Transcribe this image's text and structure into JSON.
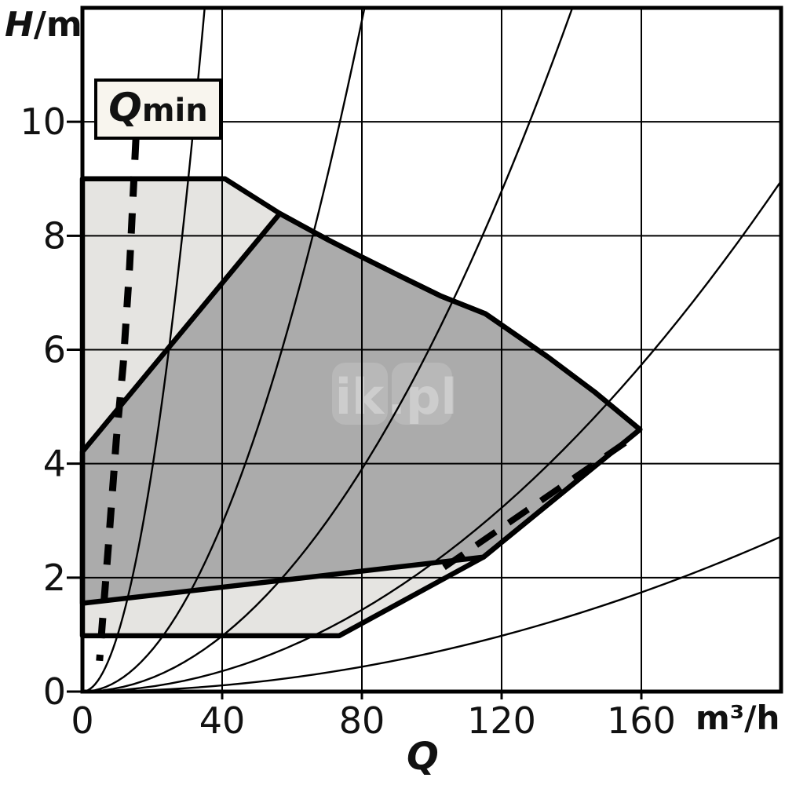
{
  "watermark": {
    "full": "ik.pl",
    "parts": [
      "ik",
      ".pl"
    ]
  },
  "labels": {
    "y_axis_symbol": "H",
    "y_axis_unit": "/m",
    "x_axis_symbol": "Q",
    "x_axis_unit": "m³/h",
    "qmin_symbol": "Q",
    "qmin_sub": "min"
  },
  "colors": {
    "envelope_light": "#e5e4e1",
    "operating_dark": "#ababab",
    "line": "#000000",
    "qmin_box_bg": "#f8f5ee"
  },
  "chart_data": {
    "type": "area",
    "title": "",
    "xlabel": "Q",
    "x_unit": "m³/h",
    "ylabel": "H/m",
    "grid": true,
    "x_axis": {
      "ticks": [
        0,
        40,
        80,
        120,
        160
      ],
      "range": [
        0,
        200
      ]
    },
    "y_axis": {
      "ticks": [
        0,
        2,
        4,
        6,
        8,
        10
      ],
      "range": [
        0,
        12
      ]
    },
    "regions": [
      {
        "name": "pump-family-envelope",
        "fill": "#e5e4e1",
        "points": [
          [
            0,
            9
          ],
          [
            40.8,
            9
          ],
          [
            56.5,
            8.39
          ],
          [
            70.6,
            7.92
          ],
          [
            80.2,
            7.62
          ],
          [
            93,
            7.23
          ],
          [
            102.7,
            6.94
          ],
          [
            115.4,
            6.63
          ],
          [
            133.3,
            5.87
          ],
          [
            146.8,
            5.25
          ],
          [
            159.6,
            4.6
          ],
          [
            114.8,
            2.36
          ],
          [
            73.5,
            0.98
          ],
          [
            0,
            0.98
          ]
        ]
      },
      {
        "name": "pump-operating-range",
        "fill": "#ababab",
        "points": [
          [
            0,
            4.21
          ],
          [
            56.5,
            8.39
          ],
          [
            70.6,
            7.92
          ],
          [
            80.2,
            7.62
          ],
          [
            93,
            7.23
          ],
          [
            102.7,
            6.94
          ],
          [
            115.4,
            6.63
          ],
          [
            133.3,
            5.87
          ],
          [
            146.8,
            5.25
          ],
          [
            159.6,
            4.6
          ],
          [
            114.8,
            2.36
          ],
          [
            0,
            1.55
          ]
        ]
      }
    ],
    "system_curves": {
      "name": "system-characteristic-parabolas",
      "k_values": [
        0.0098,
        0.00184,
        0.00061,
        0.000224,
        6.8e-05
      ]
    },
    "qmin_curve": {
      "label": "Qmin",
      "style": "dashed",
      "points": [
        [
          15.3,
          9.69
        ],
        [
          13.5,
          7.45
        ],
        [
          11.7,
          5.76
        ],
        [
          9.7,
          4.42
        ],
        [
          7.4,
          2.53
        ],
        [
          5.6,
          1.12
        ],
        [
          4.9,
          0.54
        ]
      ]
    },
    "min_speed_dashed": {
      "style": "dashed",
      "points": [
        [
          103.5,
          2.18
        ],
        [
          158.5,
          4.5
        ]
      ]
    }
  }
}
